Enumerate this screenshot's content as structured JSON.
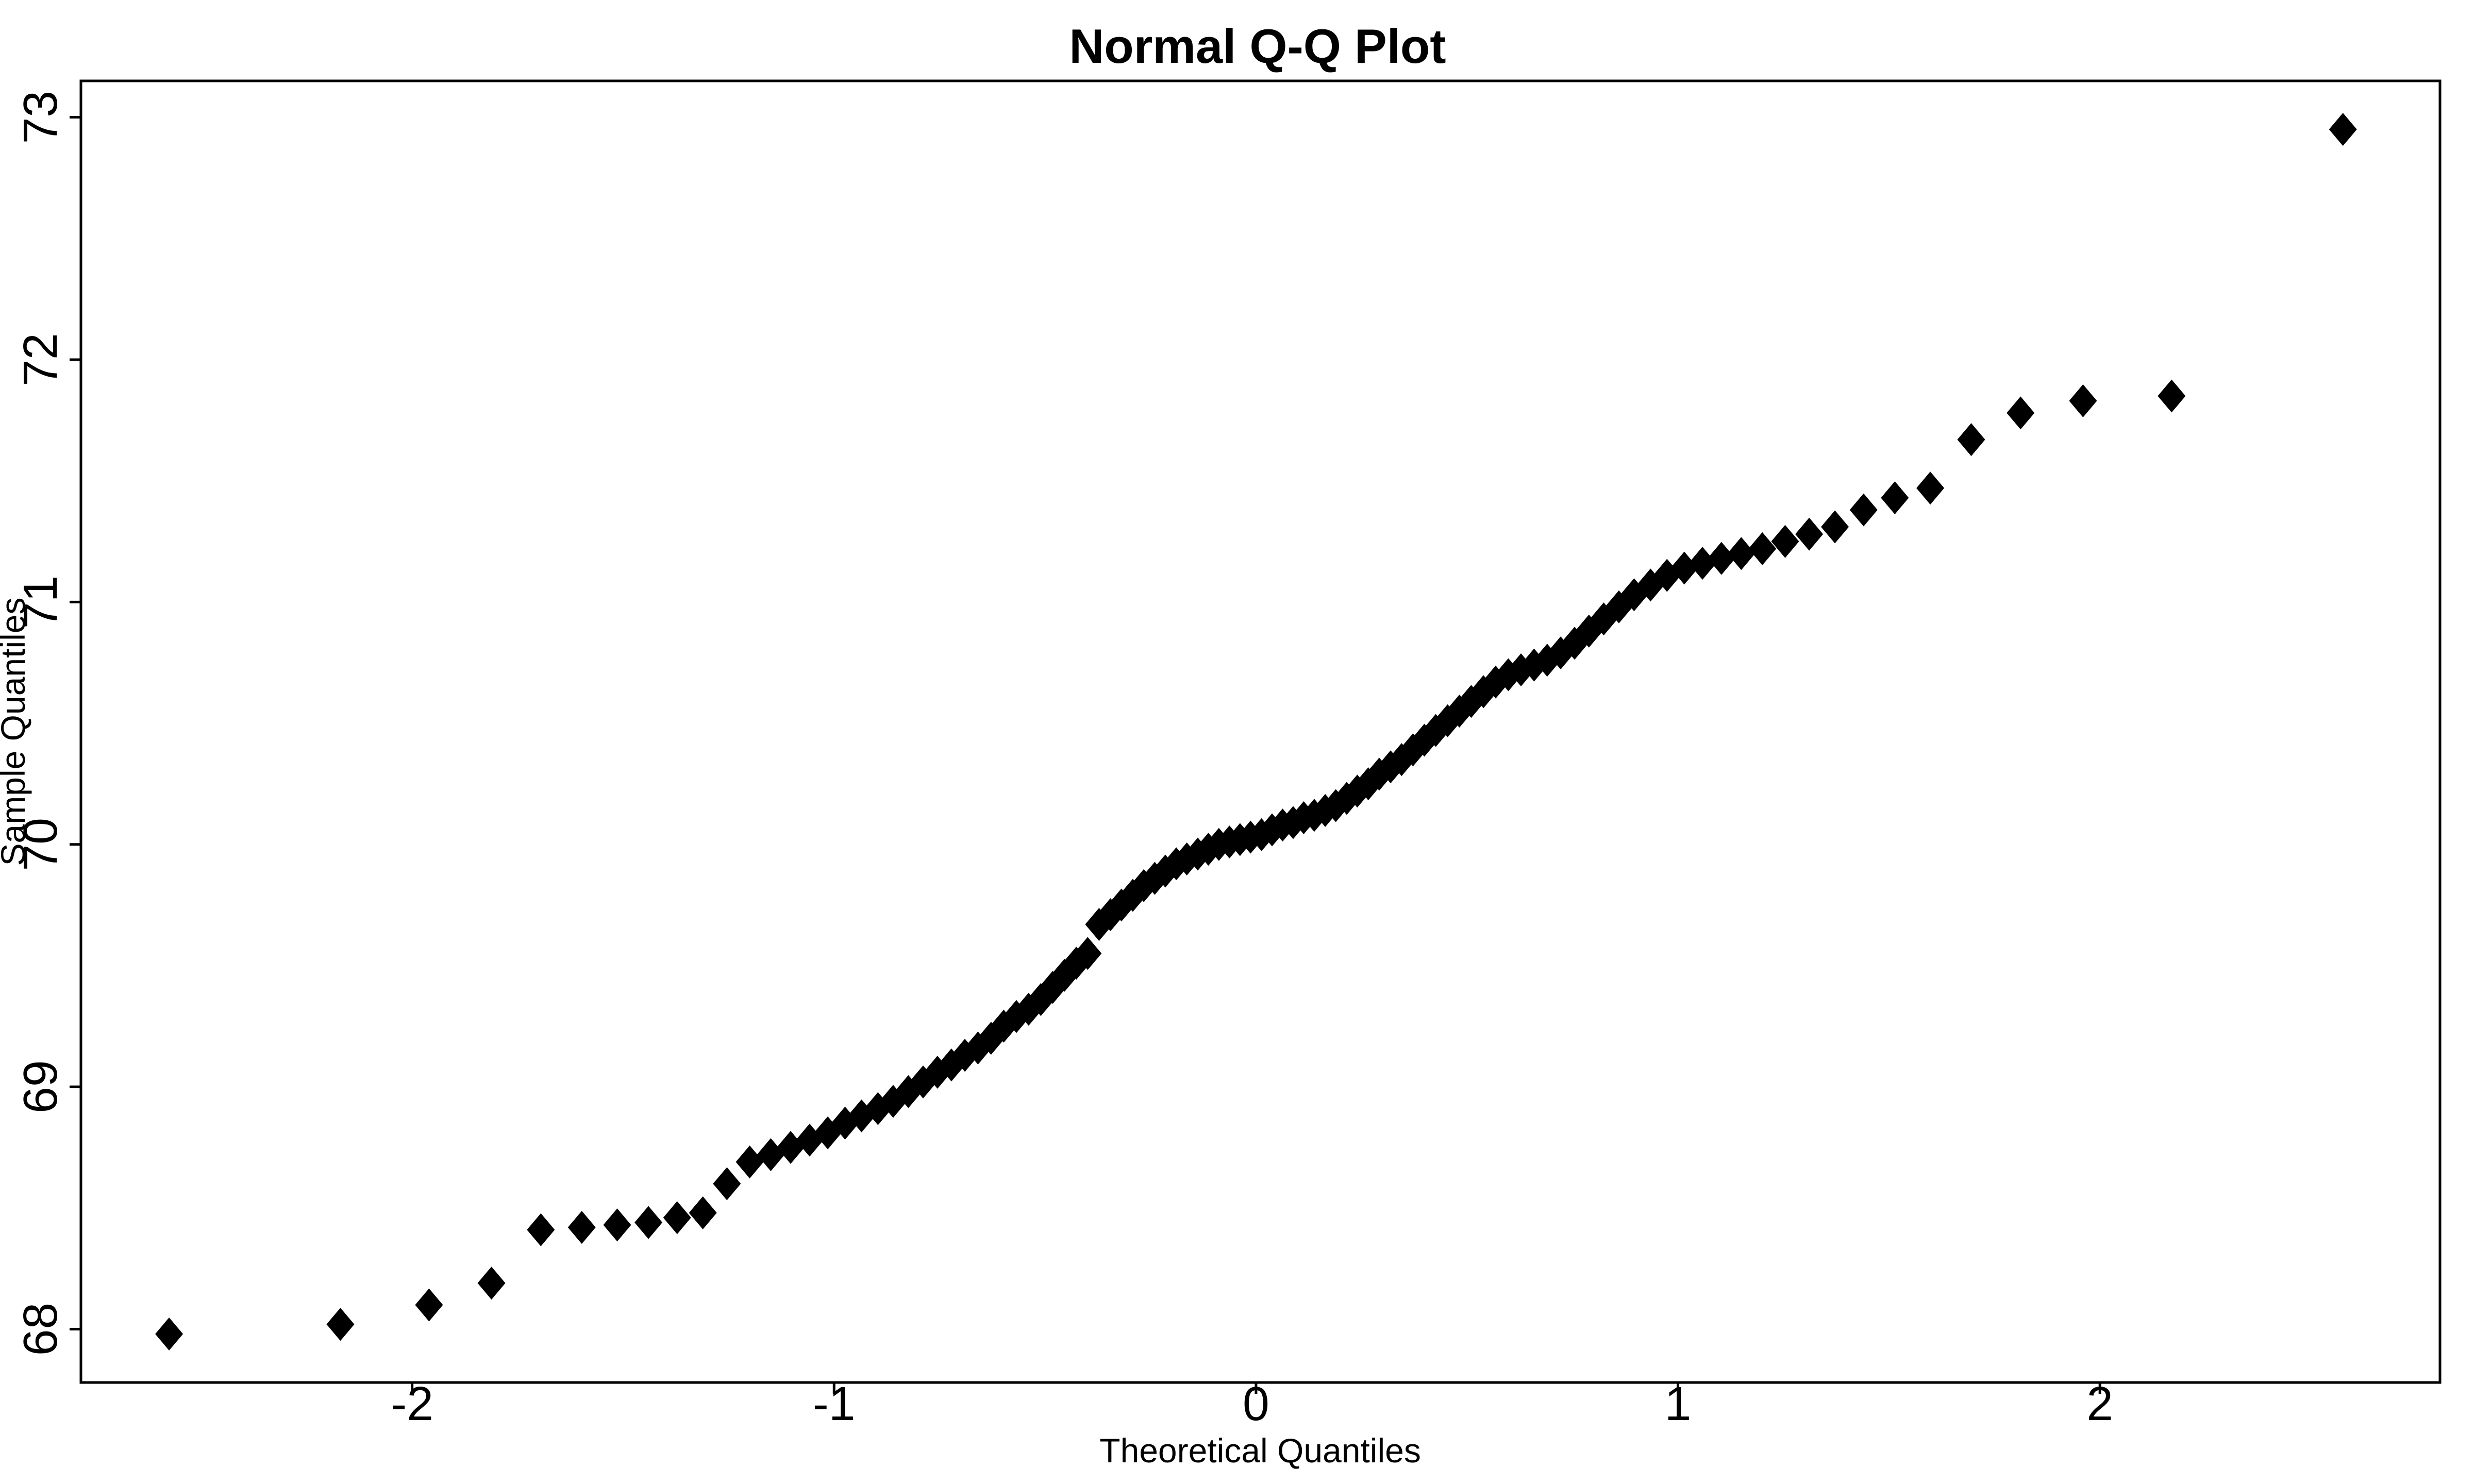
{
  "chart_data": {
    "type": "scatter",
    "title": "Normal Q-Q Plot",
    "xlabel": "Theoretical Quantiles",
    "ylabel": "Sample Quantiles",
    "marker": "filled-diamond",
    "fg_color": "#000000",
    "bg_color": "#ffffff",
    "grid": false,
    "legend": null,
    "x_ticks": [
      -2,
      -1,
      0,
      1,
      2
    ],
    "y_ticks": [
      68,
      69,
      70,
      71,
      72,
      73
    ],
    "xlim": [
      -2.785,
      2.806
    ],
    "ylim": [
      67.78,
      73.15
    ],
    "points": [
      [
        -2.576,
        67.98
      ],
      [
        -2.17,
        68.02
      ],
      [
        -1.96,
        68.1
      ],
      [
        -1.812,
        68.19
      ],
      [
        -1.695,
        68.41
      ],
      [
        -1.598,
        68.42
      ],
      [
        -1.514,
        68.43
      ],
      [
        -1.44,
        68.44
      ],
      [
        -1.372,
        68.46
      ],
      [
        -1.311,
        68.48
      ],
      [
        -1.254,
        68.6
      ],
      [
        -1.2,
        68.69
      ],
      [
        -1.15,
        68.72
      ],
      [
        -1.103,
        68.75
      ],
      [
        -1.058,
        68.78
      ],
      [
        -1.015,
        68.81
      ],
      [
        -0.974,
        68.85
      ],
      [
        -0.935,
        68.88
      ],
      [
        -0.896,
        68.91
      ],
      [
        -0.86,
        68.94
      ],
      [
        -0.824,
        68.98
      ],
      [
        -0.789,
        69.02
      ],
      [
        -0.755,
        69.06
      ],
      [
        -0.722,
        69.09
      ],
      [
        -0.69,
        69.13
      ],
      [
        -0.659,
        69.16
      ],
      [
        -0.628,
        69.2
      ],
      [
        -0.598,
        69.25
      ],
      [
        -0.568,
        69.29
      ],
      [
        -0.539,
        69.32
      ],
      [
        -0.51,
        69.36
      ],
      [
        -0.482,
        69.41
      ],
      [
        -0.454,
        69.46
      ],
      [
        -0.426,
        69.51
      ],
      [
        -0.399,
        69.55
      ],
      [
        -0.372,
        69.67
      ],
      [
        -0.345,
        69.71
      ],
      [
        -0.319,
        69.75
      ],
      [
        -0.292,
        69.79
      ],
      [
        -0.266,
        69.83
      ],
      [
        -0.24,
        69.86
      ],
      [
        -0.215,
        69.89
      ],
      [
        -0.189,
        69.92
      ],
      [
        -0.164,
        69.94
      ],
      [
        -0.138,
        69.96
      ],
      [
        -0.113,
        69.98
      ],
      [
        -0.088,
        70.0
      ],
      [
        -0.063,
        70.01
      ],
      [
        -0.038,
        70.02
      ],
      [
        -0.013,
        70.03
      ],
      [
        0.013,
        70.04
      ],
      [
        0.038,
        70.06
      ],
      [
        0.063,
        70.08
      ],
      [
        0.088,
        70.09
      ],
      [
        0.113,
        70.11
      ],
      [
        0.138,
        70.12
      ],
      [
        0.164,
        70.14
      ],
      [
        0.189,
        70.16
      ],
      [
        0.215,
        70.19
      ],
      [
        0.24,
        70.22
      ],
      [
        0.266,
        70.25
      ],
      [
        0.292,
        70.29
      ],
      [
        0.319,
        70.32
      ],
      [
        0.345,
        70.35
      ],
      [
        0.372,
        70.39
      ],
      [
        0.399,
        70.43
      ],
      [
        0.426,
        70.47
      ],
      [
        0.454,
        70.51
      ],
      [
        0.482,
        70.55
      ],
      [
        0.51,
        70.59
      ],
      [
        0.539,
        70.63
      ],
      [
        0.568,
        70.67
      ],
      [
        0.598,
        70.7
      ],
      [
        0.628,
        70.72
      ],
      [
        0.659,
        70.74
      ],
      [
        0.69,
        70.76
      ],
      [
        0.722,
        70.79
      ],
      [
        0.755,
        70.83
      ],
      [
        0.789,
        70.88
      ],
      [
        0.824,
        70.93
      ],
      [
        0.86,
        70.98
      ],
      [
        0.896,
        71.03
      ],
      [
        0.935,
        71.07
      ],
      [
        0.974,
        71.11
      ],
      [
        1.015,
        71.14
      ],
      [
        1.058,
        71.16
      ],
      [
        1.103,
        71.18
      ],
      [
        1.15,
        71.2
      ],
      [
        1.2,
        71.22
      ],
      [
        1.254,
        71.25
      ],
      [
        1.311,
        71.28
      ],
      [
        1.372,
        71.31
      ],
      [
        1.44,
        71.38
      ],
      [
        1.514,
        71.43
      ],
      [
        1.598,
        71.47
      ],
      [
        1.695,
        71.67
      ],
      [
        1.812,
        71.78
      ],
      [
        1.96,
        71.83
      ],
      [
        2.17,
        71.85
      ],
      [
        2.576,
        72.95
      ]
    ]
  }
}
